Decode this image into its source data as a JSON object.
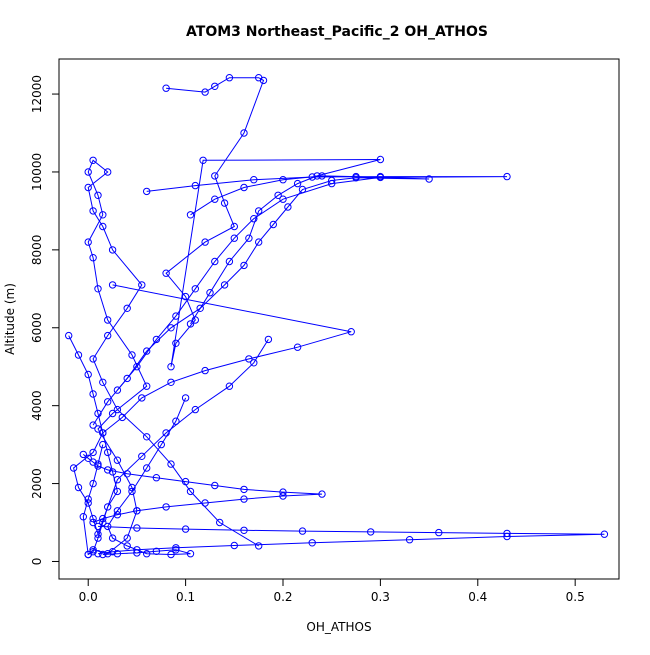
{
  "chart_data": {
    "type": "line",
    "title": "ATOM3 Northeast_Pacific_2 OH_ATHOS",
    "xlabel": "OH_ATHOS",
    "ylabel": "Altitude (m)",
    "xlim": [
      -0.03,
      0.545
    ],
    "ylim": [
      -450,
      12900
    ],
    "xticks": [
      0.0,
      0.1,
      0.2,
      0.3,
      0.4,
      0.5
    ],
    "xtick_labels": [
      "0.0",
      "0.1",
      "0.2",
      "0.3",
      "0.4",
      "0.5"
    ],
    "yticks": [
      0,
      2000,
      4000,
      6000,
      8000,
      10000,
      12000
    ],
    "ytick_labels": [
      "0",
      "2000",
      "4000",
      "6000",
      "8000",
      "10000",
      "12000"
    ],
    "grid": false,
    "legend": "none",
    "series_color": "#0000ff",
    "series": [
      {
        "x": [
          0.0,
          0.005,
          0.02,
          0.04,
          0.05,
          0.045,
          0.03,
          0.01,
          0.025,
          0.06,
          0.045,
          0.02,
          0.01,
          0.005,
          0.0,
          0.015,
          0.01,
          0.0,
          0.005,
          0.02,
          0.0,
          0.005,
          0.015,
          0.025,
          0.055,
          0.04,
          0.02,
          0.005,
          0.015,
          0.03,
          0.06,
          0.085,
          0.105,
          0.135,
          0.175
        ],
        "y": [
          180,
          300,
          200,
          600,
          1300,
          1900,
          2600,
          3400,
          3800,
          4500,
          5300,
          6200,
          7000,
          7800,
          8200,
          8900,
          9400,
          10000,
          10300,
          10000,
          9600,
          9000,
          8600,
          8000,
          7100,
          6500,
          5800,
          5200,
          4600,
          3900,
          3200,
          2500,
          1800,
          1000,
          400
        ]
      },
      {
        "x": [
          0.08,
          0.12,
          0.13,
          0.145,
          0.175,
          0.18,
          0.16,
          0.13,
          0.14,
          0.15,
          0.12,
          0.08,
          0.1,
          0.11,
          0.09,
          0.085,
          0.118,
          0.3,
          0.235,
          0.215,
          0.195,
          0.175,
          0.165,
          0.145,
          0.125,
          0.105
        ],
        "y": [
          12150,
          12050,
          12200,
          12420,
          12420,
          12350,
          11000,
          9900,
          9200,
          8600,
          8200,
          7400,
          6800,
          6200,
          5600,
          5000,
          10300,
          10320,
          9900,
          9700,
          9400,
          9000,
          8300,
          7700,
          6900,
          6100
        ]
      },
      {
        "x": [
          0.105,
          0.13,
          0.16,
          0.2,
          0.24,
          0.275,
          0.35,
          0.275,
          0.25,
          0.22,
          0.205,
          0.19,
          0.175,
          0.16,
          0.14,
          0.115,
          0.085,
          0.06,
          0.04,
          0.02,
          0.005
        ],
        "y": [
          8900,
          9300,
          9600,
          9800,
          9900,
          9880,
          9820,
          9850,
          9780,
          9550,
          9100,
          8650,
          8200,
          7600,
          7100,
          6500,
          6000,
          5400,
          4700,
          4100,
          3500
        ]
      },
      {
        "x": [
          0.06,
          0.11,
          0.17,
          0.23,
          0.3,
          0.43,
          0.3,
          0.25,
          0.2,
          0.17,
          0.15,
          0.13,
          0.11,
          0.09,
          0.07,
          0.05,
          0.03
        ],
        "y": [
          9500,
          9650,
          9800,
          9870,
          9880,
          9880,
          9860,
          9700,
          9300,
          8800,
          8300,
          7700,
          7000,
          6300,
          5700,
          5000,
          4400
        ]
      },
      {
        "x": [
          0.025,
          0.27,
          0.215,
          0.165,
          0.12,
          0.085,
          0.055,
          0.035,
          0.015,
          0.005,
          -0.015,
          -0.01,
          0.0,
          0.005,
          0.01,
          0.03,
          0.055,
          0.08,
          0.11,
          0.145,
          0.17,
          0.185
        ],
        "y": [
          7100,
          5900,
          5500,
          5200,
          4900,
          4600,
          4200,
          3700,
          3300,
          2800,
          2400,
          1900,
          1500,
          1100,
          700,
          2100,
          2700,
          3300,
          3900,
          4500,
          5100,
          5700
        ]
      },
      {
        "x": [
          -0.02,
          -0.01,
          0.0,
          0.005,
          0.01,
          0.015,
          0.02,
          0.025,
          0.03,
          0.02,
          0.015,
          0.01,
          0.005,
          0.0,
          -0.005,
          0.0,
          0.005,
          0.01,
          0.015
        ],
        "y": [
          5800,
          5300,
          4800,
          4300,
          3800,
          3300,
          2800,
          2300,
          1800,
          1400,
          1000,
          600,
          250,
          180,
          1150,
          1600,
          2000,
          2500,
          3000
        ]
      },
      {
        "x": [
          -0.005,
          0.0,
          0.005,
          0.01,
          0.02,
          0.04,
          0.07,
          0.1,
          0.13,
          0.16,
          0.2,
          0.24,
          0.2,
          0.16,
          0.12,
          0.08,
          0.05,
          0.03,
          0.015,
          0.005
        ],
        "y": [
          2750,
          2650,
          2550,
          2450,
          2350,
          2250,
          2150,
          2050,
          1950,
          1850,
          1780,
          1730,
          1680,
          1600,
          1500,
          1400,
          1300,
          1200,
          1100,
          1000
        ]
      },
      {
        "x": [
          0.01,
          0.05,
          0.1,
          0.16,
          0.22,
          0.29,
          0.36,
          0.43,
          0.53,
          0.43,
          0.33,
          0.23,
          0.15,
          0.09,
          0.05,
          0.025,
          0.01
        ],
        "y": [
          900,
          860,
          830,
          800,
          780,
          760,
          740,
          720,
          700,
          640,
          560,
          480,
          410,
          350,
          300,
          250,
          200
        ]
      },
      {
        "x": [
          0.015,
          0.03,
          0.05,
          0.07,
          0.09,
          0.105,
          0.085,
          0.06,
          0.04,
          0.025,
          0.02,
          0.03,
          0.045,
          0.06,
          0.075,
          0.09,
          0.1
        ],
        "y": [
          180,
          200,
          220,
          260,
          300,
          200,
          180,
          200,
          400,
          600,
          900,
          1300,
          1800,
          2400,
          3000,
          3600,
          4200
        ]
      }
    ]
  }
}
